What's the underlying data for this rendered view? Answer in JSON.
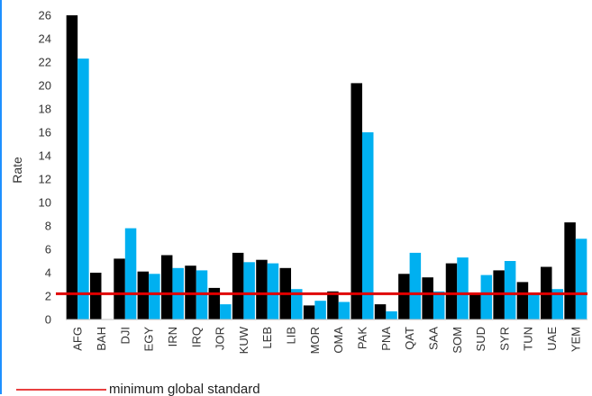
{
  "chart_data": {
    "type": "bar",
    "title": "",
    "xlabel": "",
    "ylabel": "Rate",
    "ylim": [
      0,
      26
    ],
    "y_ticks": [
      0,
      2,
      4,
      6,
      8,
      10,
      12,
      14,
      16,
      18,
      20,
      22,
      24,
      26
    ],
    "grid": false,
    "categories": [
      "AFG",
      "BAH",
      "DJI",
      "EGY",
      "IRN",
      "IRQ",
      "JOR",
      "KUW",
      "LEB",
      "LIB",
      "MOR",
      "OMA",
      "PAK",
      "PNA",
      "QAT",
      "SAA",
      "SOM",
      "SUD",
      "SYR",
      "TUN",
      "UAE",
      "YEM"
    ],
    "series": [
      {
        "color": "#000000",
        "values": [
          26.0,
          4.0,
          5.2,
          4.1,
          5.5,
          4.6,
          2.7,
          5.7,
          5.1,
          4.4,
          1.2,
          2.4,
          20.2,
          1.3,
          3.9,
          3.6,
          4.8,
          2.3,
          4.2,
          3.2,
          4.5,
          8.3
        ]
      },
      {
        "color": "#00b0f0",
        "values": [
          22.3,
          0.0,
          7.8,
          3.9,
          4.4,
          4.2,
          1.3,
          4.9,
          4.8,
          2.6,
          1.6,
          1.5,
          16.0,
          0.7,
          5.7,
          2.4,
          5.3,
          3.8,
          5.0,
          2.3,
          2.6,
          6.9
        ]
      }
    ],
    "reference_line": {
      "value": 2.2,
      "color": "#e00000",
      "label": "minimum global standard"
    },
    "legend": {
      "position": "bottom-left",
      "entries": [
        "minimum global standard"
      ]
    }
  }
}
